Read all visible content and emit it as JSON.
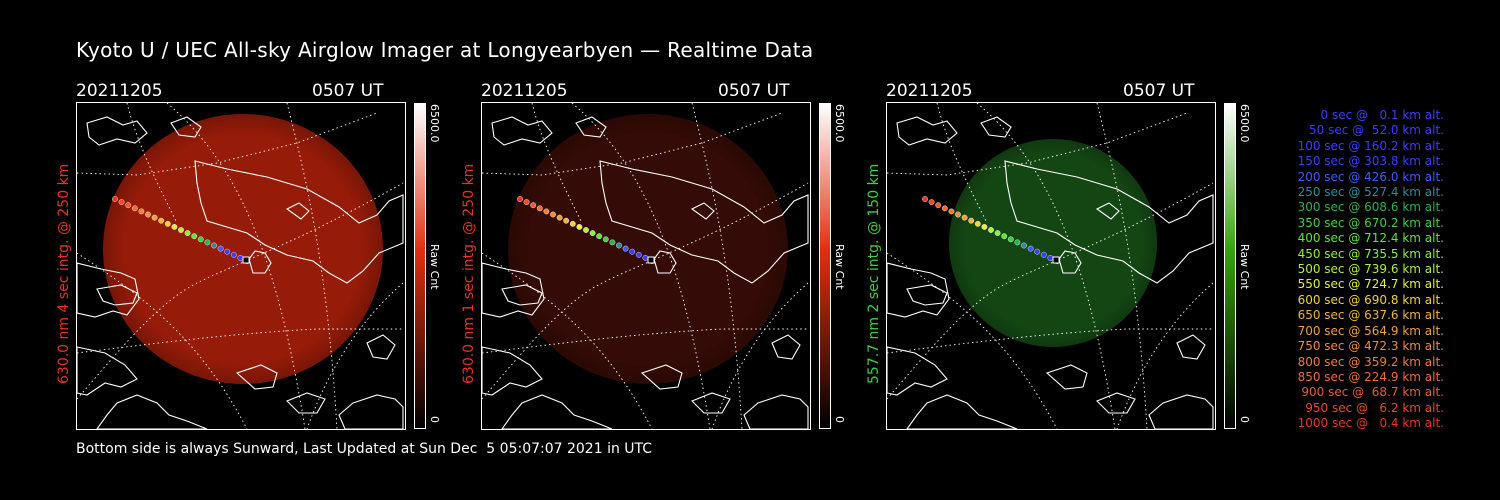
{
  "title": "Kyoto U / UEC All-sky Airglow Imager at Longyearbyen — Realtime Data",
  "footer": "Bottom side is always Sunward, Last Updated at Sun Dec  5 05:07:07 2021 in UTC",
  "colors": {
    "red_label": "#e8321e",
    "green_label": "#3ed23e",
    "background": "#000000"
  },
  "panels": [
    {
      "date": "20211205",
      "time": "0507 UT",
      "side_label": "630.0 nm 4 sec intg. @ 250 km",
      "label_color": "#e8321e",
      "cbar_max": "6500.0",
      "cbar_min": "0",
      "cbar_unit": "Raw Cnt",
      "cbar_color": "#e03010",
      "glow_color": "#b0200a",
      "glow_opacity": 0.85
    },
    {
      "date": "20211205",
      "time": "0507 UT",
      "side_label": "630.0 nm 1 sec intg. @ 250 km",
      "label_color": "#e8321e",
      "cbar_max": "6500.0",
      "cbar_min": "0",
      "cbar_unit": "Raw Cnt",
      "cbar_color": "#e03010",
      "glow_color": "#3a0c06",
      "glow_opacity": 0.9
    },
    {
      "date": "20211205",
      "time": "0507 UT",
      "side_label": "557.7 nm 2 sec intg. @ 150 km",
      "label_color": "#3ed23e",
      "cbar_max": "6500.0",
      "cbar_min": "0",
      "cbar_unit": "Raw Cnt",
      "cbar_color": "#3aa010",
      "glow_color": "#164e16",
      "glow_opacity": 0.9
    }
  ],
  "legend": [
    {
      "text": "0 sec @   0.1 km alt.",
      "color": "#3c3cff"
    },
    {
      "text": "50 sec @  52.0 km alt.",
      "color": "#3c3cff"
    },
    {
      "text": "100 sec @ 160.2 km alt.",
      "color": "#3c3cff"
    },
    {
      "text": "150 sec @ 303.8 km alt.",
      "color": "#3c3cff"
    },
    {
      "text": "200 sec @ 426.0 km alt.",
      "color": "#3c5cff"
    },
    {
      "text": "250 sec @ 527.4 km alt.",
      "color": "#2c8c9c"
    },
    {
      "text": "300 sec @ 608.6 km alt.",
      "color": "#2cb050"
    },
    {
      "text": "350 sec @ 670.2 km alt.",
      "color": "#3cd23c"
    },
    {
      "text": "400 sec @ 712.4 km alt.",
      "color": "#5ee63c"
    },
    {
      "text": "450 sec @ 735.5 km alt.",
      "color": "#8cf03c"
    },
    {
      "text": "500 sec @ 739.6 km alt.",
      "color": "#b4f03c"
    },
    {
      "text": "550 sec @ 724.7 km alt.",
      "color": "#e6f03c"
    },
    {
      "text": "600 sec @ 690.8 km alt.",
      "color": "#f0d23c"
    },
    {
      "text": "650 sec @ 637.6 km alt.",
      "color": "#f0b43c"
    },
    {
      "text": "700 sec @ 564.9 km alt.",
      "color": "#f0a03c"
    },
    {
      "text": "750 sec @ 472.3 km alt.",
      "color": "#f08c3c"
    },
    {
      "text": "800 sec @ 359.2 km alt.",
      "color": "#f07c3c"
    },
    {
      "text": "850 sec @ 224.9 km alt.",
      "color": "#f06c32"
    },
    {
      "text": "900 sec @  68.7 km alt.",
      "color": "#f05a28"
    },
    {
      "text": "950 sec @   6.2 km alt.",
      "color": "#f04a1e"
    },
    {
      "text": "1000 sec @   0.4 km alt.",
      "color": "#f0321e"
    }
  ]
}
